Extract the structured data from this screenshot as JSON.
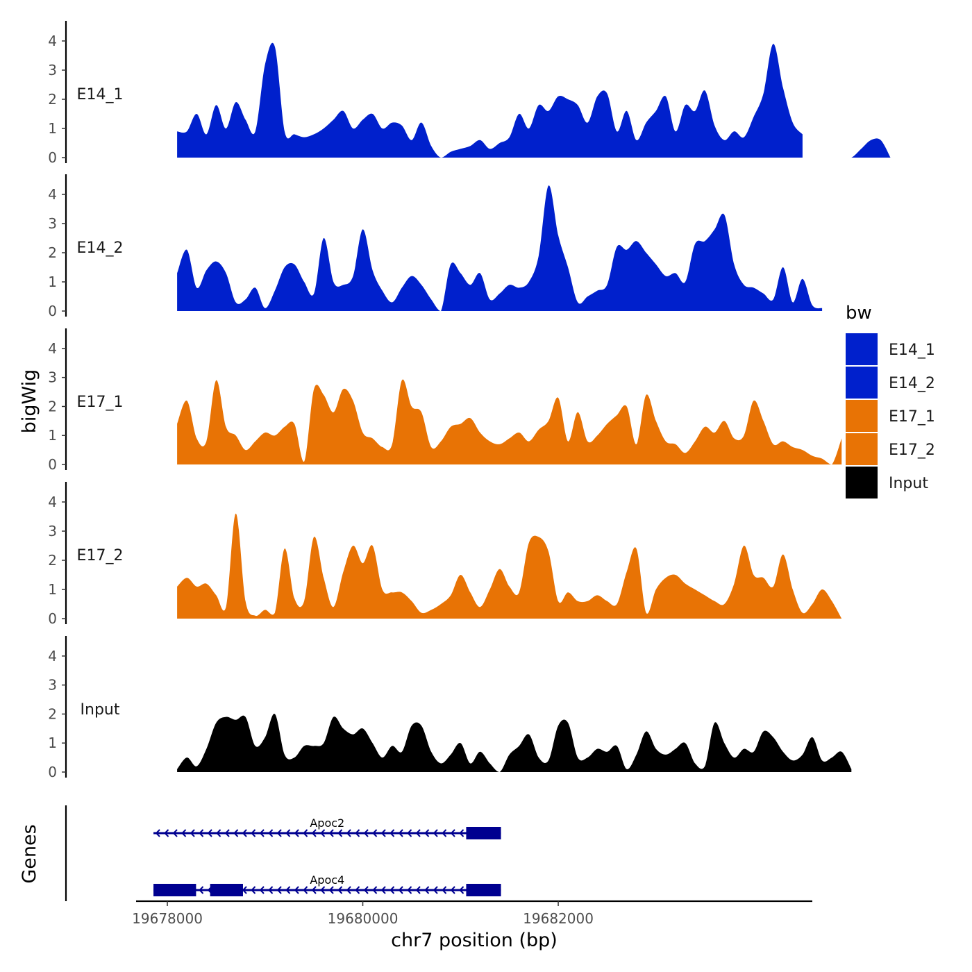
{
  "chart_data": {
    "type": "area",
    "title": "",
    "xlabel": "chr7 position (bp)",
    "ylabel": "bigWig",
    "xlim": [
      19677680,
      19684600
    ],
    "ylim": [
      0,
      4.5
    ],
    "x_ticks": [
      19678000,
      19680000,
      19682000
    ],
    "y_ticks": [
      0,
      1,
      2,
      3,
      4
    ],
    "x_start": 19678100,
    "x_step": 100,
    "legend": {
      "title": "bw",
      "position": "right",
      "entries": [
        "E14_1",
        "E14_2",
        "E17_1",
        "E17_2",
        "Input"
      ]
    },
    "series": [
      {
        "name": "E14_1",
        "color": "#0020CC",
        "values": [
          0.9,
          0.9,
          1.5,
          0.8,
          1.8,
          1.0,
          1.9,
          1.3,
          0.9,
          3.2,
          3.8,
          0.9,
          0.8,
          0.7,
          0.8,
          1.0,
          1.3,
          1.6,
          1.0,
          1.3,
          1.5,
          1.0,
          1.2,
          1.1,
          0.6,
          1.2,
          0.4,
          0.0,
          0.2,
          0.3,
          0.4,
          0.6,
          0.3,
          0.5,
          0.7,
          1.5,
          1.0,
          1.8,
          1.6,
          2.1,
          2.0,
          1.8,
          1.2,
          2.1,
          2.2,
          0.9,
          1.6,
          0.6,
          1.2,
          1.6,
          2.1,
          0.9,
          1.8,
          1.6,
          2.3,
          1.1,
          0.6,
          0.9,
          0.7,
          1.4,
          2.2,
          3.9,
          2.4,
          1.2,
          0.8,
          0.5,
          0.2,
          0.0,
          0.0,
          0.0,
          0.3,
          0.6,
          0.6,
          0.0
        ],
        "gaps": [
          [
            19684500,
            19684800
          ]
        ]
      },
      {
        "name": "E14_2",
        "color": "#0020CC",
        "values": [
          1.3,
          2.1,
          0.8,
          1.4,
          1.7,
          1.3,
          0.3,
          0.4,
          0.8,
          0.1,
          0.7,
          1.5,
          1.6,
          1.0,
          0.6,
          2.5,
          1.0,
          0.9,
          1.2,
          2.8,
          1.4,
          0.7,
          0.3,
          0.8,
          1.2,
          0.9,
          0.4,
          0.0,
          1.6,
          1.3,
          0.9,
          1.3,
          0.4,
          0.6,
          0.9,
          0.8,
          1.0,
          1.9,
          4.3,
          2.6,
          1.5,
          0.3,
          0.5,
          0.7,
          0.9,
          2.2,
          2.1,
          2.4,
          2.0,
          1.6,
          1.2,
          1.3,
          1.0,
          2.3,
          2.4,
          2.8,
          3.3,
          1.6,
          0.9,
          0.8,
          0.6,
          0.4,
          1.5,
          0.3,
          1.1,
          0.2,
          0.1
        ],
        "gaps": []
      },
      {
        "name": "E17_1",
        "color": "#E87305",
        "values": [
          1.4,
          2.2,
          0.9,
          0.8,
          2.9,
          1.3,
          1.0,
          0.5,
          0.8,
          1.1,
          1.0,
          1.3,
          1.4,
          0.1,
          2.6,
          2.4,
          1.8,
          2.6,
          2.2,
          1.1,
          0.9,
          0.6,
          0.7,
          2.9,
          2.0,
          1.8,
          0.6,
          0.8,
          1.3,
          1.4,
          1.6,
          1.1,
          0.8,
          0.7,
          0.9,
          1.1,
          0.8,
          1.2,
          1.5,
          2.3,
          0.8,
          1.8,
          0.8,
          1.0,
          1.4,
          1.7,
          2.0,
          0.7,
          2.4,
          1.5,
          0.8,
          0.7,
          0.4,
          0.8,
          1.3,
          1.1,
          1.5,
          0.9,
          1.0,
          2.2,
          1.5,
          0.7,
          0.8,
          0.6,
          0.5,
          0.3,
          0.2,
          0.0,
          0.9
        ],
        "gaps": []
      },
      {
        "name": "E17_2",
        "color": "#E87305",
        "values": [
          1.1,
          1.4,
          1.1,
          1.2,
          0.8,
          0.4,
          3.6,
          0.6,
          0.1,
          0.3,
          0.2,
          2.4,
          0.7,
          0.6,
          2.8,
          1.4,
          0.4,
          1.6,
          2.5,
          1.9,
          2.5,
          1.0,
          0.9,
          0.9,
          0.6,
          0.2,
          0.3,
          0.5,
          0.8,
          1.5,
          0.9,
          0.4,
          1.0,
          1.7,
          1.1,
          0.9,
          2.6,
          2.8,
          2.3,
          0.6,
          0.9,
          0.6,
          0.6,
          0.8,
          0.6,
          0.5,
          1.6,
          2.4,
          0.2,
          1.0,
          1.4,
          1.5,
          1.2,
          1.0,
          0.8,
          0.6,
          0.5,
          1.2,
          2.5,
          1.5,
          1.4,
          1.1,
          2.2,
          1.0,
          0.2,
          0.5,
          1.0,
          0.6,
          0.0
        ],
        "gaps": []
      },
      {
        "name": "Input",
        "color": "#000000",
        "values": [
          0.1,
          0.5,
          0.2,
          0.8,
          1.7,
          1.9,
          1.8,
          1.9,
          0.9,
          1.2,
          2.0,
          0.6,
          0.5,
          0.9,
          0.9,
          1.0,
          1.9,
          1.5,
          1.3,
          1.5,
          1.0,
          0.5,
          0.9,
          0.7,
          1.6,
          1.6,
          0.7,
          0.3,
          0.6,
          1.0,
          0.3,
          0.7,
          0.3,
          0.0,
          0.6,
          0.9,
          1.3,
          0.5,
          0.4,
          1.6,
          1.7,
          0.5,
          0.5,
          0.8,
          0.7,
          0.9,
          0.1,
          0.6,
          1.4,
          0.8,
          0.6,
          0.8,
          1.0,
          0.3,
          0.2,
          1.7,
          1.0,
          0.5,
          0.8,
          0.7,
          1.4,
          1.2,
          0.7,
          0.4,
          0.6,
          1.2,
          0.4,
          0.5,
          0.7,
          0.1
        ],
        "gaps": []
      }
    ],
    "genes_track": {
      "label": "Genes",
      "color": "#000090",
      "genes": [
        {
          "name": "Apoc2",
          "strand": "-",
          "start": 19678000,
          "end": 19681350,
          "exons": [
            [
              19681200,
              19681350
            ]
          ]
        },
        {
          "name": "Apoc4",
          "strand": "-",
          "start": 19678000,
          "end": 19681350,
          "exons": [
            [
              19678000,
              19678230
            ],
            [
              19678580,
              19678710
            ],
            [
              19681200,
              19681350
            ]
          ]
        }
      ]
    }
  }
}
